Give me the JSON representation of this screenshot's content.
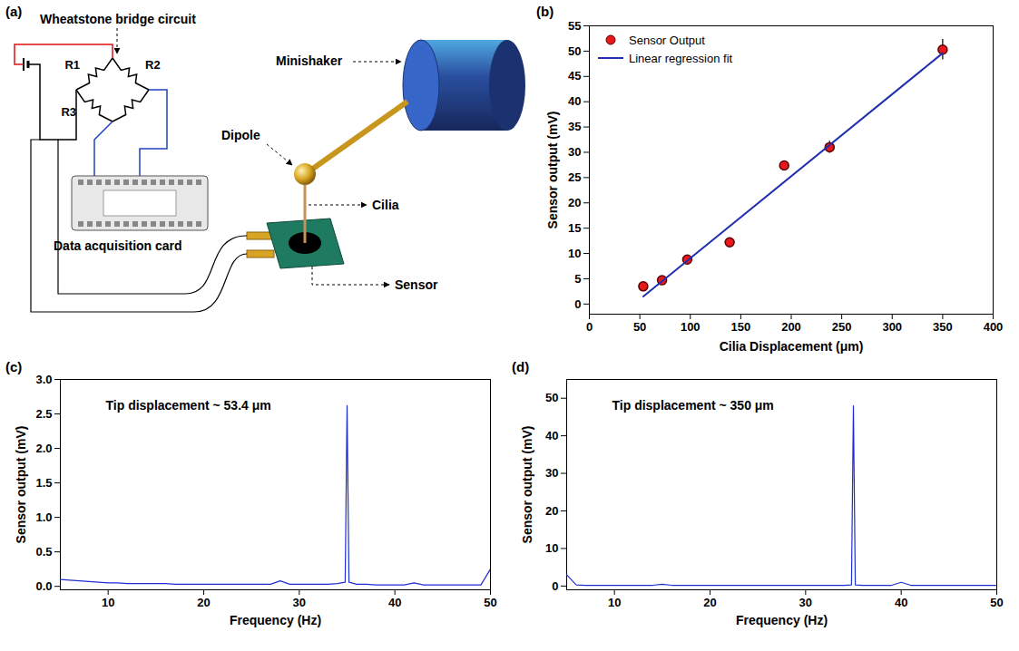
{
  "diagram": {
    "panel_label": "(a)",
    "title": "Wheatstone bridge circuit",
    "resistors": [
      "R1",
      "R2",
      "R3"
    ],
    "labels": {
      "daq": "Data acquisition card",
      "shaker": "Minishaker",
      "dipole": "Dipole",
      "cilia": "Cilia",
      "sensor": "Sensor"
    }
  },
  "chart_data": [
    {
      "panel_label": "(b)",
      "type": "scatter",
      "x_label": "Cilia Displacement (μm)",
      "y_label": "Sensor output (mV)",
      "xlim": [
        0,
        400
      ],
      "xticks": [
        0,
        50,
        100,
        150,
        200,
        250,
        300,
        350,
        400
      ],
      "ylim": [
        -2,
        55
      ],
      "yticks": [
        0,
        5,
        10,
        15,
        20,
        25,
        30,
        35,
        40,
        45,
        50,
        55
      ],
      "grid": false,
      "legend": "top-left",
      "series": [
        {
          "name": "Sensor Output",
          "type": "scatter",
          "color": "#e8191c",
          "marker": "circle",
          "x": [
            53.4,
            72,
            97,
            139,
            193,
            238,
            350
          ],
          "values": [
            3.5,
            4.7,
            8.8,
            12.2,
            27.4,
            31,
            50.3
          ],
          "error": [
            0.5,
            0.5,
            0.5,
            0.5,
            0.8,
            1.2,
            2.0
          ]
        },
        {
          "name": "Linear regression fit",
          "type": "line",
          "color": "#1f2fb0",
          "line_style": "solid",
          "x": [
            53.4,
            350
          ],
          "values": [
            1.5,
            49.6
          ]
        }
      ]
    },
    {
      "panel_label": "(c)",
      "type": "line",
      "x_label": "Frequency (Hz)",
      "y_label": "Sensor output (mV)",
      "annotations": [
        "Tip displacement ~ 53.4 μm"
      ],
      "xlim": [
        5,
        50
      ],
      "xticks": [
        10,
        20,
        30,
        40,
        50
      ],
      "ylim": [
        -0.05,
        3.0
      ],
      "yticks": [
        {
          "value": 0,
          "label": "0.0"
        },
        {
          "value": 0.5,
          "label": "0.5"
        },
        {
          "value": 1,
          "label": "1.0"
        },
        {
          "value": 1.5,
          "label": "1.5"
        },
        {
          "value": 2,
          "label": "2.0"
        },
        {
          "value": 2.5,
          "label": "2.5"
        },
        {
          "value": 3,
          "label": "3.0"
        }
      ],
      "grid": false,
      "color": "#1f2fd0",
      "line_style": "solid",
      "x": [
        5,
        6,
        7,
        8,
        9,
        10,
        11,
        12,
        13,
        14,
        15,
        16,
        17,
        18,
        19,
        20,
        21,
        22,
        23,
        24,
        25,
        26,
        27,
        28,
        29,
        30,
        31,
        32,
        33,
        34,
        34.8,
        35,
        35.2,
        36,
        37,
        38,
        39,
        40,
        41,
        42,
        43,
        44,
        45,
        46,
        47,
        48,
        49,
        50
      ],
      "values": [
        0.1,
        0.09,
        0.08,
        0.07,
        0.06,
        0.05,
        0.05,
        0.04,
        0.04,
        0.04,
        0.04,
        0.04,
        0.03,
        0.03,
        0.03,
        0.03,
        0.03,
        0.03,
        0.03,
        0.03,
        0.03,
        0.03,
        0.03,
        0.08,
        0.03,
        0.03,
        0.03,
        0.03,
        0.03,
        0.04,
        0.06,
        2.62,
        0.06,
        0.03,
        0.03,
        0.02,
        0.02,
        0.02,
        0.02,
        0.05,
        0.02,
        0.02,
        0.02,
        0.02,
        0.02,
        0.02,
        0.02,
        0.25
      ]
    },
    {
      "panel_label": "(d)",
      "type": "line",
      "x_label": "Frequency (Hz)",
      "y_label": "Sensor output (mV)",
      "annotations": [
        "Tip displacement ~ 350 μm"
      ],
      "xlim": [
        5,
        50
      ],
      "xticks": [
        10,
        20,
        30,
        40,
        50
      ],
      "ylim": [
        -1,
        55
      ],
      "yticks": [
        0,
        10,
        20,
        30,
        40,
        50
      ],
      "grid": false,
      "color": "#1f2fd0",
      "line_style": "solid",
      "x": [
        5,
        6,
        7,
        8,
        9,
        10,
        11,
        12,
        13,
        14,
        15,
        16,
        17,
        18,
        19,
        20,
        21,
        22,
        23,
        24,
        25,
        26,
        27,
        28,
        29,
        30,
        31,
        32,
        33,
        34,
        34.8,
        35,
        35.2,
        36,
        37,
        38,
        39,
        40,
        41,
        42,
        43,
        44,
        45,
        46,
        47,
        48,
        49,
        50
      ],
      "values": [
        3.0,
        0.3,
        0.2,
        0.2,
        0.2,
        0.2,
        0.2,
        0.2,
        0.2,
        0.2,
        0.5,
        0.2,
        0.2,
        0.2,
        0.2,
        0.2,
        0.2,
        0.2,
        0.2,
        0.2,
        0.2,
        0.2,
        0.2,
        0.2,
        0.2,
        0.2,
        0.2,
        0.2,
        0.2,
        0.2,
        0.3,
        48,
        0.3,
        0.2,
        0.2,
        0.2,
        0.2,
        1.0,
        0.2,
        0.2,
        0.2,
        0.2,
        0.2,
        0.2,
        0.2,
        0.2,
        0.2,
        0.2
      ]
    }
  ]
}
